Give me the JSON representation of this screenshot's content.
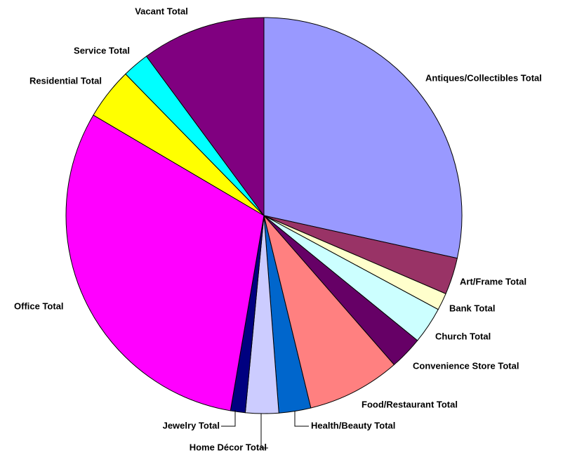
{
  "chart_data": {
    "type": "pie",
    "categories": [
      "Antiques/Collectibles Total",
      "Art/Frame Total",
      "Bank Total",
      "Church Total",
      "Convenience Store Total",
      "Food/Restaurant Total",
      "Health/Beauty Total",
      "Home Décor Total",
      "Jewelry Total",
      "Office Total",
      "Residential Total",
      "Service Total",
      "Vacant Total"
    ],
    "values": [
      28.4,
      3.0,
      1.4,
      3.0,
      2.7,
      7.6,
      2.6,
      2.7,
      1.2,
      30.7,
      4.2,
      2.2,
      10.1
    ],
    "colors": [
      "#9999ff",
      "#993366",
      "#ffffcc",
      "#ccffff",
      "#660066",
      "#ff8080",
      "#0066cc",
      "#ccccff",
      "#000080",
      "#ff00ff",
      "#ffff00",
      "#00ffff",
      "#800080"
    ]
  }
}
